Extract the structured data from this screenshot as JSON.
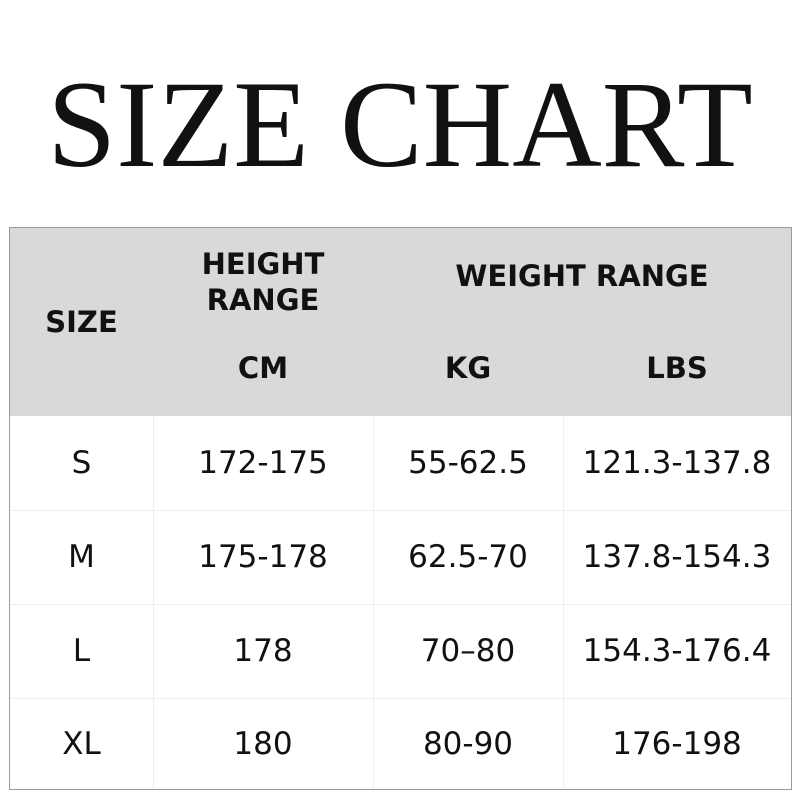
{
  "title": "SIZE CHART",
  "header": {
    "size": "SIZE",
    "height_range": "HEIGHT\nRANGE",
    "weight_range": "WEIGHT RANGE",
    "cm": "CM",
    "kg": "KG",
    "lbs": "LBS"
  },
  "rows": [
    {
      "size": "S",
      "cm": "172-175",
      "kg": "55-62.5",
      "lbs": "121.3-137.8"
    },
    {
      "size": "M",
      "cm": "175-178",
      "kg": "62.5-70",
      "lbs": "137.8-154.3"
    },
    {
      "size": "L",
      "cm": "178",
      "kg": "70–80",
      "lbs": "154.3-176.4"
    },
    {
      "size": "XL",
      "cm": "180",
      "kg": "80-90",
      "lbs": "176-198"
    }
  ],
  "colors": {
    "header_bg": "#d9d9d9",
    "border": "#9a9a9a"
  }
}
